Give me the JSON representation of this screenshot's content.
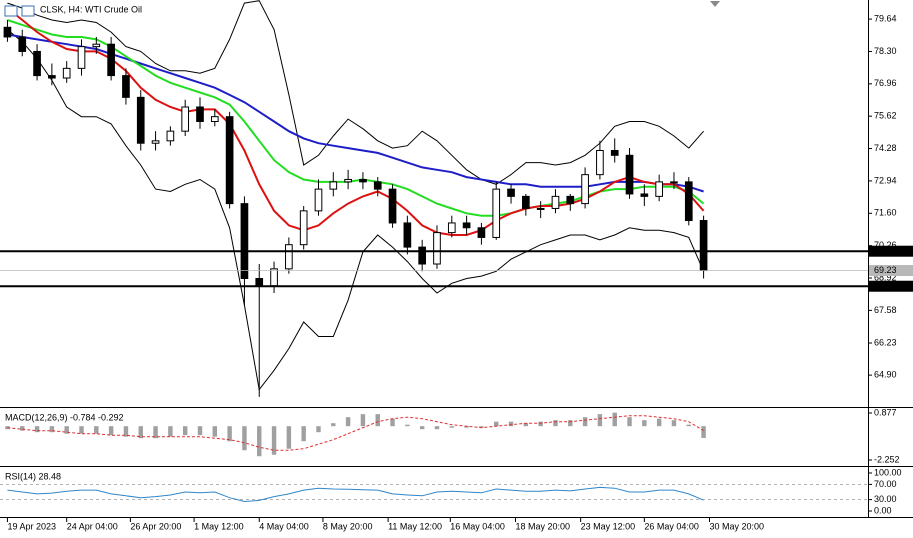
{
  "chart_data": [
    {
      "type": "candlestick",
      "title": "CLSK, H4: WTI Crude Oil",
      "open": [
        79.3,
        78.9,
        78.3,
        77.3,
        77.2,
        77.6,
        78.5,
        78.6,
        77.3,
        76.4,
        74.5,
        74.6,
        75.0,
        76.0,
        75.4,
        75.6,
        72.0,
        68.9,
        68.6,
        69.3,
        70.3,
        71.7,
        72.6,
        72.9,
        73.0,
        72.9,
        72.6,
        71.2,
        70.2,
        69.5,
        70.8,
        71.2,
        71.0,
        70.6,
        72.6,
        72.3,
        71.8,
        71.8,
        72.3,
        72.0,
        73.2,
        74.2,
        74.0,
        72.4,
        72.3,
        72.9,
        72.9,
        71.3
      ],
      "high": [
        79.6,
        79.2,
        78.6,
        77.8,
        77.9,
        78.8,
        78.9,
        78.9,
        77.6,
        76.7,
        75.0,
        75.2,
        76.3,
        76.4,
        75.9,
        75.8,
        72.3,
        69.5,
        69.6,
        70.6,
        71.9,
        73.0,
        73.3,
        73.4,
        73.3,
        73.1,
        72.8,
        71.5,
        70.5,
        71.1,
        71.5,
        71.5,
        71.2,
        72.9,
        72.8,
        72.4,
        72.1,
        72.6,
        72.4,
        73.5,
        74.6,
        74.7,
        74.3,
        72.8,
        73.2,
        73.3,
        73.1,
        71.5
      ],
      "low": [
        78.7,
        78.1,
        77.1,
        76.9,
        77.0,
        77.3,
        78.2,
        77.1,
        76.1,
        74.2,
        74.2,
        74.4,
        74.8,
        75.1,
        75.2,
        71.8,
        67.8,
        64.0,
        68.3,
        69.1,
        70.1,
        71.5,
        72.3,
        72.6,
        72.6,
        72.3,
        71.0,
        69.9,
        69.2,
        69.3,
        70.6,
        70.7,
        70.3,
        70.5,
        72.0,
        71.5,
        71.4,
        71.6,
        71.7,
        71.8,
        73.0,
        73.7,
        72.2,
        71.9,
        72.1,
        72.6,
        71.1,
        68.9
      ],
      "close": [
        78.9,
        78.3,
        77.3,
        77.2,
        77.6,
        78.5,
        78.6,
        77.3,
        76.4,
        74.5,
        74.6,
        75.0,
        76.0,
        75.4,
        75.6,
        72.0,
        68.9,
        68.6,
        69.3,
        70.3,
        71.7,
        72.6,
        72.9,
        73.0,
        72.9,
        72.6,
        71.2,
        70.2,
        69.5,
        70.8,
        71.2,
        71.0,
        70.6,
        72.6,
        72.3,
        71.8,
        71.8,
        72.3,
        72.0,
        73.2,
        74.2,
        74.0,
        72.4,
        72.3,
        72.9,
        72.9,
        71.3,
        69.23
      ],
      "up_color": "#ffffff",
      "down_color": "#000000",
      "series": [
        {
          "color": "#000000",
          "values": [
            80.3,
            80.1,
            79.8,
            79.6,
            79.5,
            79.6,
            79.5,
            79.1,
            78.5,
            78.3,
            77.8,
            77.5,
            77.5,
            77.4,
            77.6,
            78.8,
            80.3,
            80.4,
            79.2,
            76.5,
            73.6,
            74.0,
            74.8,
            75.5,
            75.1,
            74.6,
            74.3,
            74.4,
            75.0,
            74.6,
            74.0,
            73.4,
            73.0,
            72.8,
            73.2,
            73.7,
            73.7,
            73.6,
            73.7,
            74.0,
            74.5,
            75.2,
            75.4,
            75.4,
            75.2,
            74.8,
            74.3,
            75.0
          ]
        },
        {
          "color": "#000000",
          "values": [
            79.2,
            78.7,
            78.0,
            77.1,
            76.0,
            75.6,
            75.6,
            75.3,
            74.4,
            73.6,
            72.6,
            72.5,
            72.8,
            73.0,
            72.6,
            71.0,
            67.8,
            64.3,
            65.1,
            66.0,
            67.1,
            66.5,
            66.5,
            68.0,
            70.0,
            70.7,
            70.2,
            69.6,
            68.9,
            68.3,
            68.7,
            68.9,
            69.0,
            69.2,
            69.7,
            70.0,
            70.3,
            70.5,
            70.7,
            70.7,
            70.5,
            70.7,
            71.0,
            70.9,
            70.9,
            70.8,
            70.6,
            69.2
          ]
        },
        {
          "color": "#1e1ec8",
          "values": [
            79.0,
            78.9,
            78.8,
            78.7,
            78.6,
            78.5,
            78.4,
            78.2,
            78.0,
            77.8,
            77.6,
            77.4,
            77.2,
            77.0,
            76.8,
            76.5,
            76.2,
            75.8,
            75.4,
            75.0,
            74.7,
            74.5,
            74.4,
            74.3,
            74.2,
            74.1,
            73.9,
            73.7,
            73.5,
            73.4,
            73.3,
            73.1,
            73.0,
            72.9,
            72.8,
            72.8,
            72.7,
            72.7,
            72.7,
            72.7,
            72.8,
            72.9,
            72.9,
            72.9,
            72.8,
            72.8,
            72.7,
            72.5
          ]
        },
        {
          "color": "#22dd22",
          "values": [
            79.6,
            79.4,
            79.2,
            79.0,
            78.9,
            78.9,
            78.8,
            78.5,
            78.1,
            77.7,
            77.3,
            77.0,
            76.8,
            76.6,
            76.4,
            76.1,
            75.4,
            74.6,
            73.8,
            73.3,
            73.0,
            72.9,
            72.9,
            72.9,
            73.0,
            72.9,
            72.8,
            72.6,
            72.3,
            72.0,
            71.8,
            71.6,
            71.5,
            71.5,
            71.6,
            71.8,
            71.9,
            72.0,
            72.1,
            72.3,
            72.5,
            72.6,
            72.6,
            72.7,
            72.7,
            72.7,
            72.5,
            72.0
          ]
        },
        {
          "color": "#dd1111",
          "values": [
            80.1,
            79.6,
            79.1,
            78.7,
            78.4,
            78.3,
            78.3,
            78.0,
            77.5,
            76.8,
            76.3,
            76.0,
            75.8,
            75.9,
            75.9,
            75.3,
            74.2,
            72.8,
            71.7,
            71.1,
            70.9,
            71.1,
            71.6,
            72.0,
            72.3,
            72.5,
            72.2,
            71.7,
            71.1,
            70.8,
            70.7,
            70.7,
            70.9,
            71.3,
            71.6,
            71.8,
            71.9,
            71.9,
            72.0,
            72.2,
            72.5,
            72.9,
            73.1,
            72.9,
            72.8,
            72.8,
            72.4,
            71.7
          ]
        }
      ],
      "hlines": [
        70.03,
        68.58
      ],
      "last_price": 69.23,
      "xlim": [
        -0.3,
        58.1
      ],
      "xticks": [
        {
          "value": 0,
          "label": "19 Apr 2023"
        },
        {
          "value": 4,
          "label": "24 Apr 04:00"
        },
        {
          "value": 8.3,
          "label": "26 Apr 20:00"
        },
        {
          "value": 12.6,
          "label": "1 May 12:00"
        },
        {
          "value": 17,
          "label": "4 May 04:00"
        },
        {
          "value": 21.3,
          "label": "8 May 20:00"
        },
        {
          "value": 25.7,
          "label": "11 May 12:00"
        },
        {
          "value": 29.9,
          "label": "16 May 04:00"
        },
        {
          "value": 34.3,
          "label": "18 May 20:00"
        },
        {
          "value": 38.7,
          "label": "23 May 12:00"
        },
        {
          "value": 43,
          "label": "26 May 04:00"
        },
        {
          "value": 47.4,
          "label": "30 May 20:00"
        }
      ],
      "ylim": [
        63.58,
        80.43
      ],
      "yticks": [
        79.64,
        {
          "value": 78.3,
          "label": "78.30"
        },
        76.96,
        75.62,
        74.28,
        72.94,
        {
          "value": 71.6,
          "label": "71.60"
        },
        70.26,
        68.92,
        67.58,
        66.23,
        {
          "value": 64.9,
          "label": "64.90"
        }
      ]
    },
    {
      "type": "bar",
      "title": "MACD(12,26,9) -0.784 -0.292",
      "values": [
        -0.2,
        -0.3,
        -0.4,
        -0.4,
        -0.5,
        -0.5,
        -0.5,
        -0.6,
        -0.7,
        -0.8,
        -0.8,
        -0.7,
        -0.6,
        -0.6,
        -0.7,
        -1.0,
        -1.6,
        -2.0,
        -1.9,
        -1.5,
        -1.0,
        -0.4,
        0.2,
        0.6,
        0.8,
        0.8,
        0.5,
        0.1,
        -0.2,
        -0.2,
        -0.1,
        -0.1,
        -0.1,
        0.3,
        0.3,
        0.2,
        0.3,
        0.4,
        0.4,
        0.6,
        0.8,
        0.9,
        0.6,
        0.4,
        0.5,
        0.4,
        0.1,
        -0.784
      ],
      "color": "#a0a0a0",
      "series": [
        {
          "color": "#e03030",
          "dashed": true,
          "values": [
            -0.1,
            -0.2,
            -0.3,
            -0.3,
            -0.4,
            -0.5,
            -0.5,
            -0.6,
            -0.6,
            -0.7,
            -0.7,
            -0.7,
            -0.7,
            -0.7,
            -0.8,
            -0.9,
            -1.1,
            -1.4,
            -1.6,
            -1.6,
            -1.5,
            -1.2,
            -0.9,
            -0.5,
            -0.1,
            0.3,
            0.5,
            0.6,
            0.5,
            0.3,
            0.1,
            0.0,
            -0.1,
            0.0,
            0.1,
            0.2,
            0.2,
            0.3,
            0.3,
            0.4,
            0.5,
            0.6,
            0.7,
            0.7,
            0.6,
            0.5,
            0.3,
            -0.292
          ]
        }
      ],
      "xlim": [
        -0.3,
        58.1
      ],
      "ylim": [
        -2.65,
        1.21
      ],
      "yticks": [
        0.877,
        -2.252
      ]
    },
    {
      "type": "line",
      "title": "RSI(14) 28.48",
      "series": [
        {
          "color": "#2f86c9",
          "values": [
            55,
            50,
            45,
            47,
            52,
            55,
            55,
            45,
            40,
            35,
            38,
            42,
            50,
            48,
            50,
            35,
            25,
            28,
            38,
            45,
            55,
            60,
            58,
            57,
            56,
            55,
            45,
            42,
            40,
            50,
            52,
            50,
            48,
            58,
            55,
            52,
            52,
            55,
            53,
            58,
            62,
            60,
            50,
            50,
            55,
            55,
            45,
            28.48
          ]
        }
      ],
      "levels": [
        70,
        30
      ],
      "xlim": [
        -0.3,
        58.1
      ],
      "ylim": [
        -15.8,
        115.8
      ],
      "yticks": [
        {
          "value": 100,
          "label": "100.00"
        },
        {
          "value": 70,
          "label": "70.00"
        },
        {
          "value": 30,
          "label": "30.00"
        },
        {
          "value": 0,
          "label": "0.00"
        }
      ]
    }
  ]
}
